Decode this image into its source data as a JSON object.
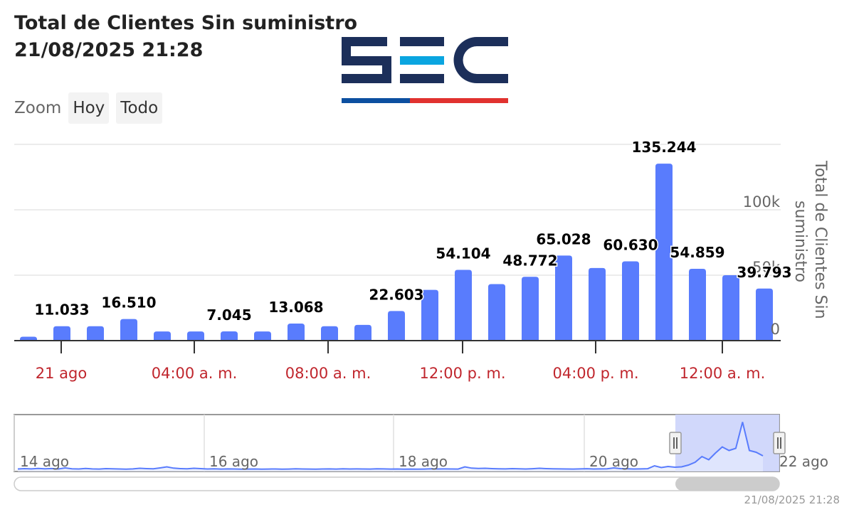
{
  "header": {
    "title_line1": "Total de Clientes Sin suministro",
    "title_line2": "21/08/2025 21:28"
  },
  "logo": {
    "text": "SEC",
    "colors": {
      "dark": "#1c2f5a",
      "light": "#0aa5e0",
      "red": "#e1322f"
    }
  },
  "zoom": {
    "label": "Zoom",
    "buttons": [
      "Hoy",
      "Todo"
    ]
  },
  "chart_data": {
    "type": "bar",
    "y_axis": {
      "label": "Total de Clientes Sin suministro",
      "ticks": [
        {
          "value": 0,
          "label": "0"
        },
        {
          "value": 50000,
          "label": "50k"
        },
        {
          "value": 100000,
          "label": "100k"
        }
      ],
      "ylim": [
        0,
        150000
      ],
      "grid": true,
      "position": "right"
    },
    "x_axis": {
      "tick_labels": [
        "21 ago",
        "04:00 a. m.",
        "08:00 a. m.",
        "12:00 p. m.",
        "04:00 p. m.",
        "12:00 a. m."
      ],
      "label_color": "#c0262d"
    },
    "bar_color": "#597cfd",
    "values": [
      3000,
      11033,
      11000,
      16510,
      7000,
      7000,
      7045,
      7000,
      13068,
      11000,
      12000,
      22603,
      38800,
      54104,
      43200,
      48772,
      65028,
      55500,
      60630,
      135244,
      54859,
      50000,
      39793
    ],
    "data_labels": [
      {
        "index": 1,
        "text": "11.033"
      },
      {
        "index": 3,
        "text": "16.510"
      },
      {
        "index": 6,
        "text": "7.045"
      },
      {
        "index": 8,
        "text": "13.068"
      },
      {
        "index": 11,
        "text": "22.603"
      },
      {
        "index": 13,
        "text": "54.104"
      },
      {
        "index": 15,
        "text": "48.772"
      },
      {
        "index": 16,
        "text": "65.028"
      },
      {
        "index": 18,
        "text": "60.630"
      },
      {
        "index": 19,
        "text": "135.244"
      },
      {
        "index": 20,
        "text": "54.859"
      },
      {
        "index": 22,
        "text": "39.793"
      }
    ],
    "navigator": {
      "tick_labels": [
        "14 ago",
        "16 ago",
        "18 ago",
        "20 ago",
        "22 ago"
      ],
      "line_color": "#597cfd",
      "selection_color": "#ccd4fb",
      "series": [
        3000,
        4000,
        3200,
        4500,
        3500,
        4200,
        3000,
        6000,
        3500,
        3000,
        4500,
        3200,
        2800,
        4000,
        3500,
        3000,
        2500,
        3200,
        5000,
        4000,
        3500,
        6000,
        9000,
        5500,
        4000,
        3500,
        5000,
        4000,
        3000,
        3500,
        2800,
        3200,
        3000,
        2500,
        2700,
        3000,
        2600,
        2800,
        3000,
        2500,
        2700,
        3500,
        3000,
        2800,
        2600,
        3000,
        3200,
        2800,
        3500,
        3000,
        3200,
        2900,
        2700,
        3500,
        3200,
        2800,
        3000,
        2600,
        2800,
        2500,
        2700,
        3500,
        2900,
        3200,
        3000,
        2800,
        9000,
        5500,
        4500,
        5000,
        4000,
        3500,
        3200,
        4000,
        3500,
        3000,
        3800,
        5000,
        4000,
        3500,
        3200,
        3000,
        2800,
        3200,
        3800,
        3000,
        3200,
        3500,
        6000,
        4000,
        3500,
        3000,
        3200,
        3800,
        12000,
        7000,
        10000,
        8000,
        9000,
        14000,
        22000,
        38000,
        29000,
        48000,
        65000,
        55000,
        61000,
        135000,
        55000,
        50000,
        40000
      ]
    }
  },
  "footer": {
    "updated": "21/08/2025 21:28"
  }
}
